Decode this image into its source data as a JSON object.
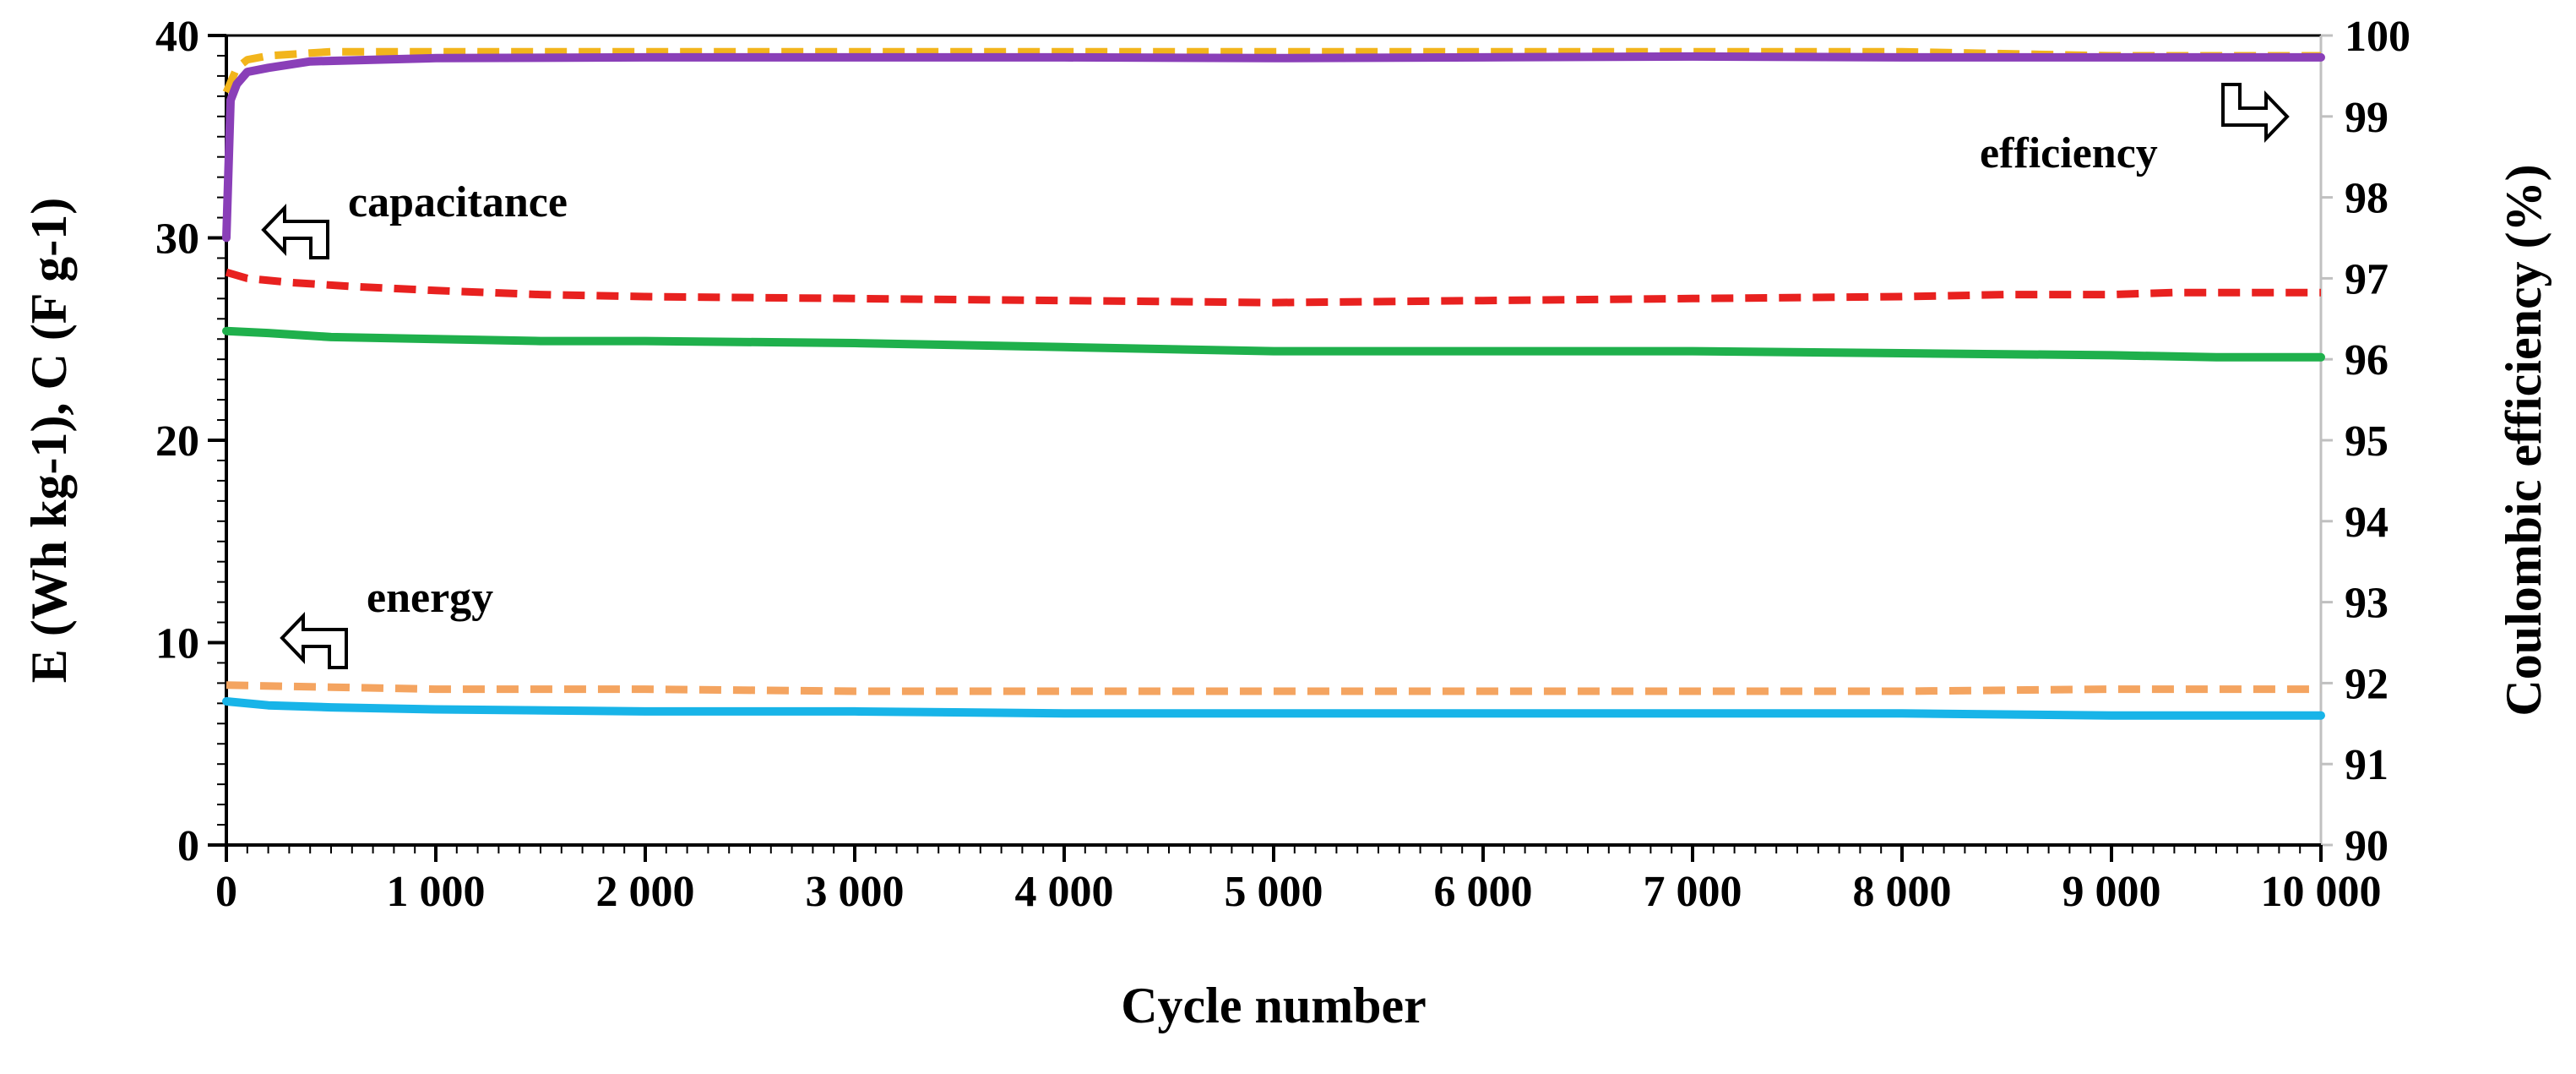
{
  "chart_data": {
    "type": "line",
    "xlabel": "Cycle number",
    "ylabel_left": "E (Wh kg-1), C (F g-1)",
    "ylabel_right": "Coulombic efficiency (%)",
    "x_range": [
      0,
      10000
    ],
    "y_left_range": [
      0,
      40
    ],
    "y_right_range": [
      90,
      100
    ],
    "x_ticks": [
      0,
      1000,
      2000,
      3000,
      4000,
      5000,
      6000,
      7000,
      8000,
      9000,
      10000
    ],
    "x_tick_labels": [
      "0",
      "1 000",
      "2 000",
      "3 000",
      "4 000",
      "5 000",
      "6 000",
      "7 000",
      "8 000",
      "9 000",
      "10 000"
    ],
    "y_left_tick_labels": [
      "0",
      "10",
      "20",
      "30",
      "40"
    ],
    "y_right_tick_labels": [
      "90",
      "91",
      "92",
      "93",
      "94",
      "95",
      "96",
      "97",
      "98",
      "99",
      "100"
    ],
    "grid": false,
    "annotations": [
      {
        "text": "capacitance",
        "points_to": "left"
      },
      {
        "text": "energy",
        "points_to": "left"
      },
      {
        "text": "efficiency",
        "points_to": "right"
      }
    ],
    "series": [
      {
        "name": "capacitance-dashed",
        "axis": "left",
        "color": "#e8211f",
        "dashed": true,
        "x": [
          0,
          100,
          300,
          600,
          1000,
          1500,
          2000,
          3000,
          4000,
          5000,
          6000,
          7000,
          8000,
          8500,
          9000,
          9300,
          10000
        ],
        "y": [
          28.3,
          28.0,
          27.8,
          27.6,
          27.4,
          27.2,
          27.1,
          27.0,
          26.9,
          26.8,
          26.9,
          27.0,
          27.1,
          27.2,
          27.2,
          27.3,
          27.3
        ]
      },
      {
        "name": "capacitance-solid",
        "axis": "left",
        "color": "#1fb04c",
        "dashed": false,
        "x": [
          0,
          200,
          500,
          1000,
          1500,
          2000,
          3000,
          4000,
          5000,
          6000,
          7000,
          8000,
          9000,
          9500,
          10000
        ],
        "y": [
          25.4,
          25.3,
          25.1,
          25.0,
          24.9,
          24.9,
          24.8,
          24.6,
          24.4,
          24.4,
          24.4,
          24.3,
          24.2,
          24.1,
          24.1
        ]
      },
      {
        "name": "energy-dashed",
        "axis": "left",
        "color": "#f4a460",
        "dashed": true,
        "x": [
          0,
          500,
          1000,
          2000,
          3000,
          4000,
          5000,
          6000,
          7000,
          8000,
          9000,
          10000
        ],
        "y": [
          7.9,
          7.8,
          7.7,
          7.7,
          7.6,
          7.6,
          7.6,
          7.6,
          7.6,
          7.6,
          7.7,
          7.7
        ]
      },
      {
        "name": "energy-solid",
        "axis": "left",
        "color": "#18b4e8",
        "dashed": false,
        "x": [
          0,
          200,
          500,
          1000,
          2000,
          3000,
          4000,
          5000,
          6000,
          7000,
          8000,
          9000,
          10000
        ],
        "y": [
          7.1,
          6.9,
          6.8,
          6.7,
          6.6,
          6.6,
          6.5,
          6.5,
          6.5,
          6.5,
          6.5,
          6.4,
          6.4
        ]
      },
      {
        "name": "efficiency-dashed",
        "axis": "right",
        "color": "#f2b51c",
        "dashed": true,
        "x": [
          0,
          50,
          100,
          200,
          500,
          1000,
          2000,
          3000,
          4000,
          5000,
          6000,
          7000,
          8000,
          9000,
          10000
        ],
        "y": [
          99.3,
          99.6,
          99.7,
          99.75,
          99.8,
          99.8,
          99.8,
          99.8,
          99.8,
          99.8,
          99.8,
          99.8,
          99.8,
          99.75,
          99.75
        ]
      },
      {
        "name": "efficiency-solid",
        "axis": "right",
        "color": "#8a3fb8",
        "dashed": false,
        "x": [
          0,
          20,
          50,
          100,
          200,
          400,
          700,
          1000,
          2000,
          3000,
          4000,
          5000,
          6000,
          7000,
          8000,
          9000,
          10000
        ],
        "y": [
          97.5,
          99.2,
          99.4,
          99.55,
          99.6,
          99.68,
          99.7,
          99.72,
          99.73,
          99.73,
          99.73,
          99.72,
          99.73,
          99.74,
          99.73,
          99.73,
          99.73
        ]
      }
    ]
  }
}
